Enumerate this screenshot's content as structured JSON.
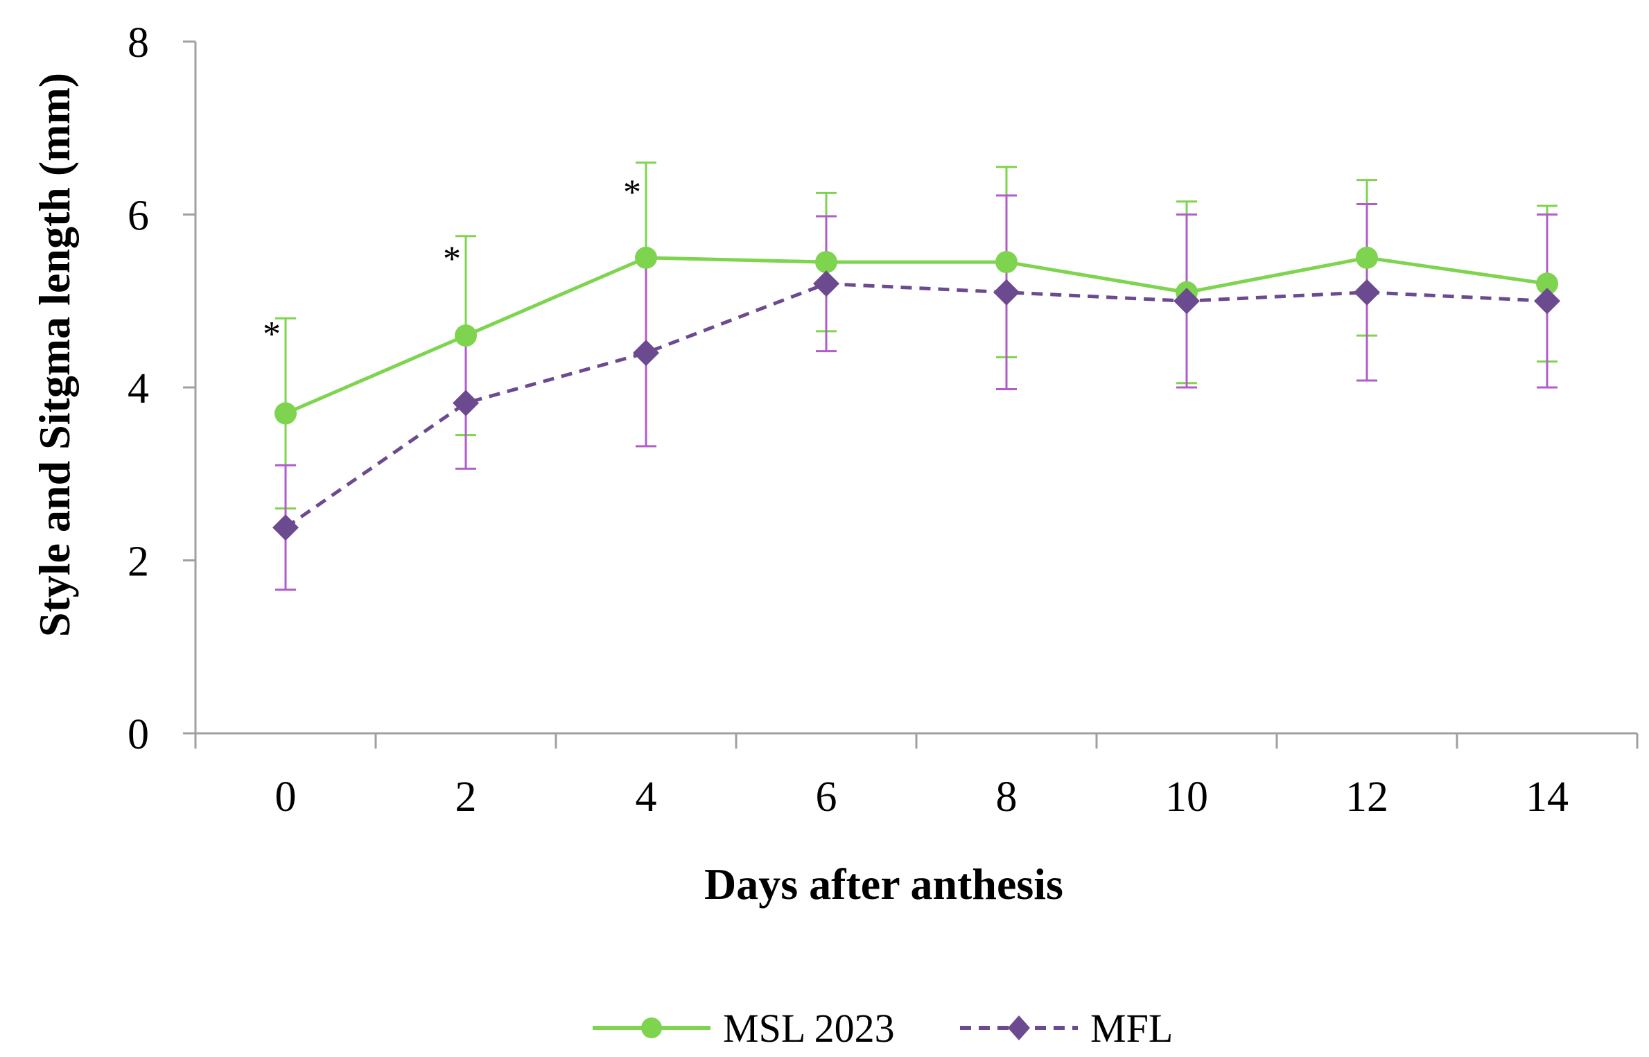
{
  "chart_data": {
    "type": "line",
    "title": "",
    "xlabel": "Days after anthesis",
    "ylabel": "Style and Sitgma length (mm)",
    "x": [
      0,
      2,
      4,
      6,
      8,
      10,
      12,
      14
    ],
    "x_tick_labels": [
      "0",
      "2",
      "4",
      "6",
      "8",
      "10",
      "12",
      "14"
    ],
    "y_tick_labels": [
      "0",
      "2",
      "4",
      "6",
      "8"
    ],
    "ylim": [
      0,
      8
    ],
    "grid": false,
    "legend_position": "bottom-center",
    "series": [
      {
        "name": "MSL 2023",
        "color": "#7ed44f",
        "marker": "circle",
        "line_style": "solid",
        "values": [
          3.7,
          4.6,
          5.5,
          5.45,
          5.45,
          5.1,
          5.5,
          5.2
        ],
        "error": [
          1.1,
          1.15,
          1.1,
          0.8,
          1.1,
          1.05,
          0.9,
          0.9
        ]
      },
      {
        "name": "MFL",
        "color": "#6b4a8f",
        "error_color": "#b15cc9",
        "marker": "diamond",
        "line_style": "dashed",
        "values": [
          2.38,
          3.82,
          4.4,
          5.2,
          5.1,
          5.0,
          5.1,
          5.0
        ],
        "error": [
          0.72,
          0.76,
          1.08,
          0.78,
          1.12,
          1.0,
          1.02,
          1.0
        ]
      }
    ],
    "annotations": [
      {
        "label": "*",
        "x_index": 0
      },
      {
        "label": "*",
        "x_index": 1
      },
      {
        "label": "*",
        "x_index": 2
      }
    ]
  }
}
